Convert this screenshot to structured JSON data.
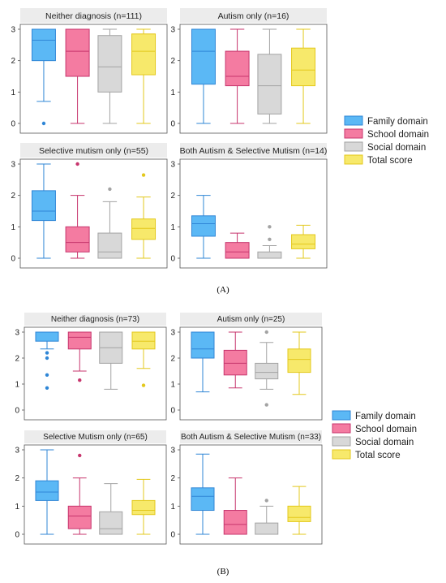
{
  "figure": {
    "panel_a_label": "(A)",
    "panel_b_label": "(B)"
  },
  "colors": {
    "family": {
      "fill": "#5BB8F5",
      "stroke": "#2F86D6"
    },
    "school": {
      "fill": "#F47BA1",
      "stroke": "#C7356D"
    },
    "social": {
      "fill": "#D8D8D8",
      "stroke": "#A3A3A3"
    },
    "total": {
      "fill": "#F7E96B",
      "stroke": "#E3C81C"
    }
  },
  "legend": {
    "items": [
      {
        "label": "Family domain",
        "key": "family"
      },
      {
        "label": "School domain",
        "key": "school"
      },
      {
        "label": "Social domain",
        "key": "social"
      },
      {
        "label": "Total score",
        "key": "total"
      }
    ]
  },
  "chart_data": [
    {
      "type": "box",
      "panel": "A",
      "title": "Neither diagnosis (n=111)",
      "ylim": [
        0,
        3
      ],
      "yticks": [
        0,
        1,
        2,
        3
      ],
      "series": [
        {
          "name": "Family domain",
          "key": "family",
          "min": 0.7,
          "q1": 2.0,
          "median": 2.65,
          "q3": 3.0,
          "max": 3.0,
          "outliers": [
            0.0
          ]
        },
        {
          "name": "School domain",
          "key": "school",
          "min": 0.0,
          "q1": 1.5,
          "median": 2.3,
          "q3": 3.0,
          "max": 3.0,
          "outliers": []
        },
        {
          "name": "Social domain",
          "key": "social",
          "min": 0.0,
          "q1": 1.0,
          "median": 1.8,
          "q3": 2.8,
          "max": 3.0,
          "outliers": []
        },
        {
          "name": "Total score",
          "key": "total",
          "min": 0.0,
          "q1": 1.55,
          "median": 2.3,
          "q3": 2.85,
          "max": 3.0,
          "outliers": []
        }
      ]
    },
    {
      "type": "box",
      "panel": "A",
      "title": "Autism only (n=16)",
      "ylim": [
        0,
        3
      ],
      "yticks": [
        0,
        1,
        2,
        3
      ],
      "series": [
        {
          "name": "Family domain",
          "key": "family",
          "min": 0.0,
          "q1": 1.25,
          "median": 2.3,
          "q3": 3.0,
          "max": 3.0,
          "outliers": []
        },
        {
          "name": "School domain",
          "key": "school",
          "min": 0.0,
          "q1": 1.2,
          "median": 1.5,
          "q3": 2.3,
          "max": 3.0,
          "outliers": []
        },
        {
          "name": "Social domain",
          "key": "social",
          "min": 0.0,
          "q1": 0.3,
          "median": 1.2,
          "q3": 2.2,
          "max": 3.0,
          "outliers": []
        },
        {
          "name": "Total score",
          "key": "total",
          "min": 0.0,
          "q1": 1.2,
          "median": 1.7,
          "q3": 2.4,
          "max": 3.0,
          "outliers": []
        }
      ]
    },
    {
      "type": "box",
      "panel": "A",
      "title": "Selective mutism only (n=55)",
      "ylim": [
        0,
        3
      ],
      "yticks": [
        0,
        1,
        2,
        3
      ],
      "series": [
        {
          "name": "Family domain",
          "key": "family",
          "min": 0.0,
          "q1": 1.2,
          "median": 1.5,
          "q3": 2.15,
          "max": 3.0,
          "outliers": []
        },
        {
          "name": "School domain",
          "key": "school",
          "min": 0.0,
          "q1": 0.2,
          "median": 0.5,
          "q3": 1.0,
          "max": 2.0,
          "outliers": [
            3.0
          ]
        },
        {
          "name": "Social domain",
          "key": "social",
          "min": 0.0,
          "q1": 0.0,
          "median": 0.2,
          "q3": 0.8,
          "max": 1.8,
          "outliers": [
            2.2
          ]
        },
        {
          "name": "Total score",
          "key": "total",
          "min": 0.0,
          "q1": 0.6,
          "median": 0.95,
          "q3": 1.25,
          "max": 1.95,
          "outliers": [
            2.65
          ]
        }
      ]
    },
    {
      "type": "box",
      "panel": "A",
      "title": "Both Autism & Selective Mutism (n=14)",
      "ylim": [
        0,
        3
      ],
      "yticks": [
        0,
        1,
        2,
        3
      ],
      "series": [
        {
          "name": "Family domain",
          "key": "family",
          "min": 0.0,
          "q1": 0.7,
          "median": 1.1,
          "q3": 1.35,
          "max": 2.0,
          "outliers": []
        },
        {
          "name": "School domain",
          "key": "school",
          "min": 0.0,
          "q1": 0.0,
          "median": 0.2,
          "q3": 0.5,
          "max": 0.8,
          "outliers": []
        },
        {
          "name": "Social domain",
          "key": "social",
          "min": 0.0,
          "q1": 0.0,
          "median": 0.0,
          "q3": 0.2,
          "max": 0.4,
          "outliers": [
            0.6,
            1.0
          ]
        },
        {
          "name": "Total score",
          "key": "total",
          "min": 0.0,
          "q1": 0.3,
          "median": 0.45,
          "q3": 0.75,
          "max": 1.05,
          "outliers": []
        }
      ]
    },
    {
      "type": "box",
      "panel": "B",
      "title": "Neither diagnosis (n=73)",
      "ylim": [
        0,
        3
      ],
      "yticks": [
        0,
        1,
        2,
        3
      ],
      "series": [
        {
          "name": "Family domain",
          "key": "family",
          "min": 2.35,
          "q1": 2.65,
          "median": 3.0,
          "q3": 3.0,
          "max": 3.0,
          "outliers": [
            2.0,
            2.2,
            1.35,
            0.85
          ]
        },
        {
          "name": "School domain",
          "key": "school",
          "min": 1.5,
          "q1": 2.35,
          "median": 2.8,
          "q3": 3.0,
          "max": 3.0,
          "outliers": [
            1.15
          ]
        },
        {
          "name": "Social domain",
          "key": "social",
          "min": 0.8,
          "q1": 1.8,
          "median": 2.4,
          "q3": 3.0,
          "max": 3.0,
          "outliers": []
        },
        {
          "name": "Total score",
          "key": "total",
          "min": 1.6,
          "q1": 2.35,
          "median": 2.65,
          "q3": 3.0,
          "max": 3.0,
          "outliers": [
            0.95
          ]
        }
      ]
    },
    {
      "type": "box",
      "panel": "B",
      "title": "Autism only (n=25)",
      "ylim": [
        0,
        3
      ],
      "yticks": [
        0,
        1,
        2,
        3
      ],
      "series": [
        {
          "name": "Family domain",
          "key": "family",
          "min": 0.7,
          "q1": 2.0,
          "median": 2.35,
          "q3": 3.0,
          "max": 3.0,
          "outliers": []
        },
        {
          "name": "School domain",
          "key": "school",
          "min": 0.85,
          "q1": 1.35,
          "median": 1.8,
          "q3": 2.3,
          "max": 3.0,
          "outliers": []
        },
        {
          "name": "Social domain",
          "key": "social",
          "min": 0.8,
          "q1": 1.2,
          "median": 1.45,
          "q3": 1.8,
          "max": 2.6,
          "outliers": [
            3.0,
            0.2
          ]
        },
        {
          "name": "Total score",
          "key": "total",
          "min": 0.6,
          "q1": 1.45,
          "median": 1.95,
          "q3": 2.35,
          "max": 3.0,
          "outliers": []
        }
      ]
    },
    {
      "type": "box",
      "panel": "B",
      "title": "Selective Mutism only (n=65)",
      "ylim": [
        0,
        3
      ],
      "yticks": [
        0,
        1,
        2,
        3
      ],
      "series": [
        {
          "name": "Family domain",
          "key": "family",
          "min": 0.0,
          "q1": 1.2,
          "median": 1.5,
          "q3": 1.9,
          "max": 3.0,
          "outliers": []
        },
        {
          "name": "School domain",
          "key": "school",
          "min": 0.0,
          "q1": 0.2,
          "median": 0.65,
          "q3": 1.0,
          "max": 2.0,
          "outliers": [
            2.8
          ]
        },
        {
          "name": "Social domain",
          "key": "social",
          "min": 0.0,
          "q1": 0.0,
          "median": 0.2,
          "q3": 0.8,
          "max": 1.8,
          "outliers": []
        },
        {
          "name": "Total score",
          "key": "total",
          "min": 0.0,
          "q1": 0.7,
          "median": 0.85,
          "q3": 1.2,
          "max": 1.95,
          "outliers": []
        }
      ]
    },
    {
      "type": "box",
      "panel": "B",
      "title": "Both Autism & Selective Mutism (n=33)",
      "ylim": [
        0,
        3
      ],
      "yticks": [
        0,
        1,
        2,
        3
      ],
      "series": [
        {
          "name": "Family domain",
          "key": "family",
          "min": 0.0,
          "q1": 0.85,
          "median": 1.35,
          "q3": 1.65,
          "max": 2.85,
          "outliers": []
        },
        {
          "name": "School domain",
          "key": "school",
          "min": 0.0,
          "q1": 0.0,
          "median": 0.35,
          "q3": 0.85,
          "max": 2.0,
          "outliers": []
        },
        {
          "name": "Social domain",
          "key": "social",
          "min": 0.0,
          "q1": 0.0,
          "median": 0.0,
          "q3": 0.4,
          "max": 1.0,
          "outliers": [
            1.2
          ]
        },
        {
          "name": "Total score",
          "key": "total",
          "min": 0.0,
          "q1": 0.45,
          "median": 0.6,
          "q3": 1.0,
          "max": 1.7,
          "outliers": []
        }
      ]
    }
  ]
}
